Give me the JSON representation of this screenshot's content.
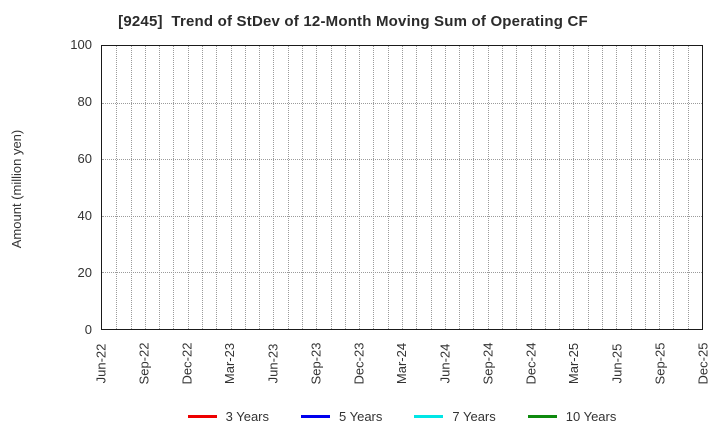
{
  "chart": {
    "title": "[9245]  Trend of StDev of 12-Month Moving Sum of Operating CF"
  },
  "chart_data": {
    "type": "line",
    "title": "[9245]  Trend of StDev of 12-Month Moving Sum of Operating CF",
    "xlabel": "",
    "ylabel": "Amount (million yen)",
    "ylim": [
      0,
      100
    ],
    "yticks": [
      0,
      20,
      40,
      60,
      80,
      100
    ],
    "categories": [
      "Jun-22",
      "Sep-22",
      "Dec-22",
      "Mar-23",
      "Jun-23",
      "Sep-23",
      "Dec-23",
      "Mar-24",
      "Jun-24",
      "Sep-24",
      "Dec-24",
      "Mar-25",
      "Jun-25",
      "Sep-25",
      "Dec-25"
    ],
    "minor_x_divisions": 42,
    "grid": true,
    "legend_position": "bottom",
    "series": [
      {
        "name": "3 Years",
        "color": "#ee0000",
        "values": []
      },
      {
        "name": "5 Years",
        "color": "#0000ee",
        "values": []
      },
      {
        "name": "7 Years",
        "color": "#00e6e6",
        "values": []
      },
      {
        "name": "10 Years",
        "color": "#0e8a0e",
        "values": []
      }
    ]
  }
}
